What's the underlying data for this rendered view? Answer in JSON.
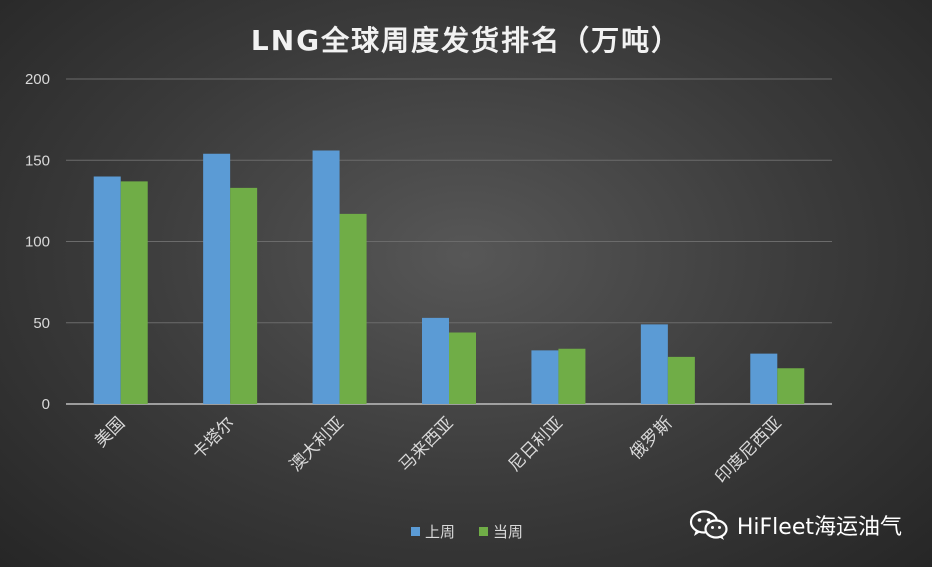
{
  "chart_data": {
    "type": "bar",
    "title": "LNG全球周度发货排名（万吨）",
    "categories": [
      "美国",
      "卡塔尔",
      "澳大利亚",
      "马来西亚",
      "尼日利亚",
      "俄罗斯",
      "印度尼西亚"
    ],
    "series": [
      {
        "name": "上周",
        "color": "#5b9bd5",
        "values": [
          140,
          154,
          156,
          53,
          33,
          49,
          31
        ]
      },
      {
        "name": "当周",
        "color": "#70ad47",
        "values": [
          137,
          133,
          117,
          44,
          34,
          29,
          22
        ]
      }
    ],
    "yticks": [
      0,
      50,
      100,
      150,
      200
    ],
    "ylim": [
      0,
      200
    ],
    "grid": true,
    "legend": "bottom"
  },
  "watermark": {
    "text": "HiFleet海运油气",
    "icon": "wechat-icon"
  }
}
